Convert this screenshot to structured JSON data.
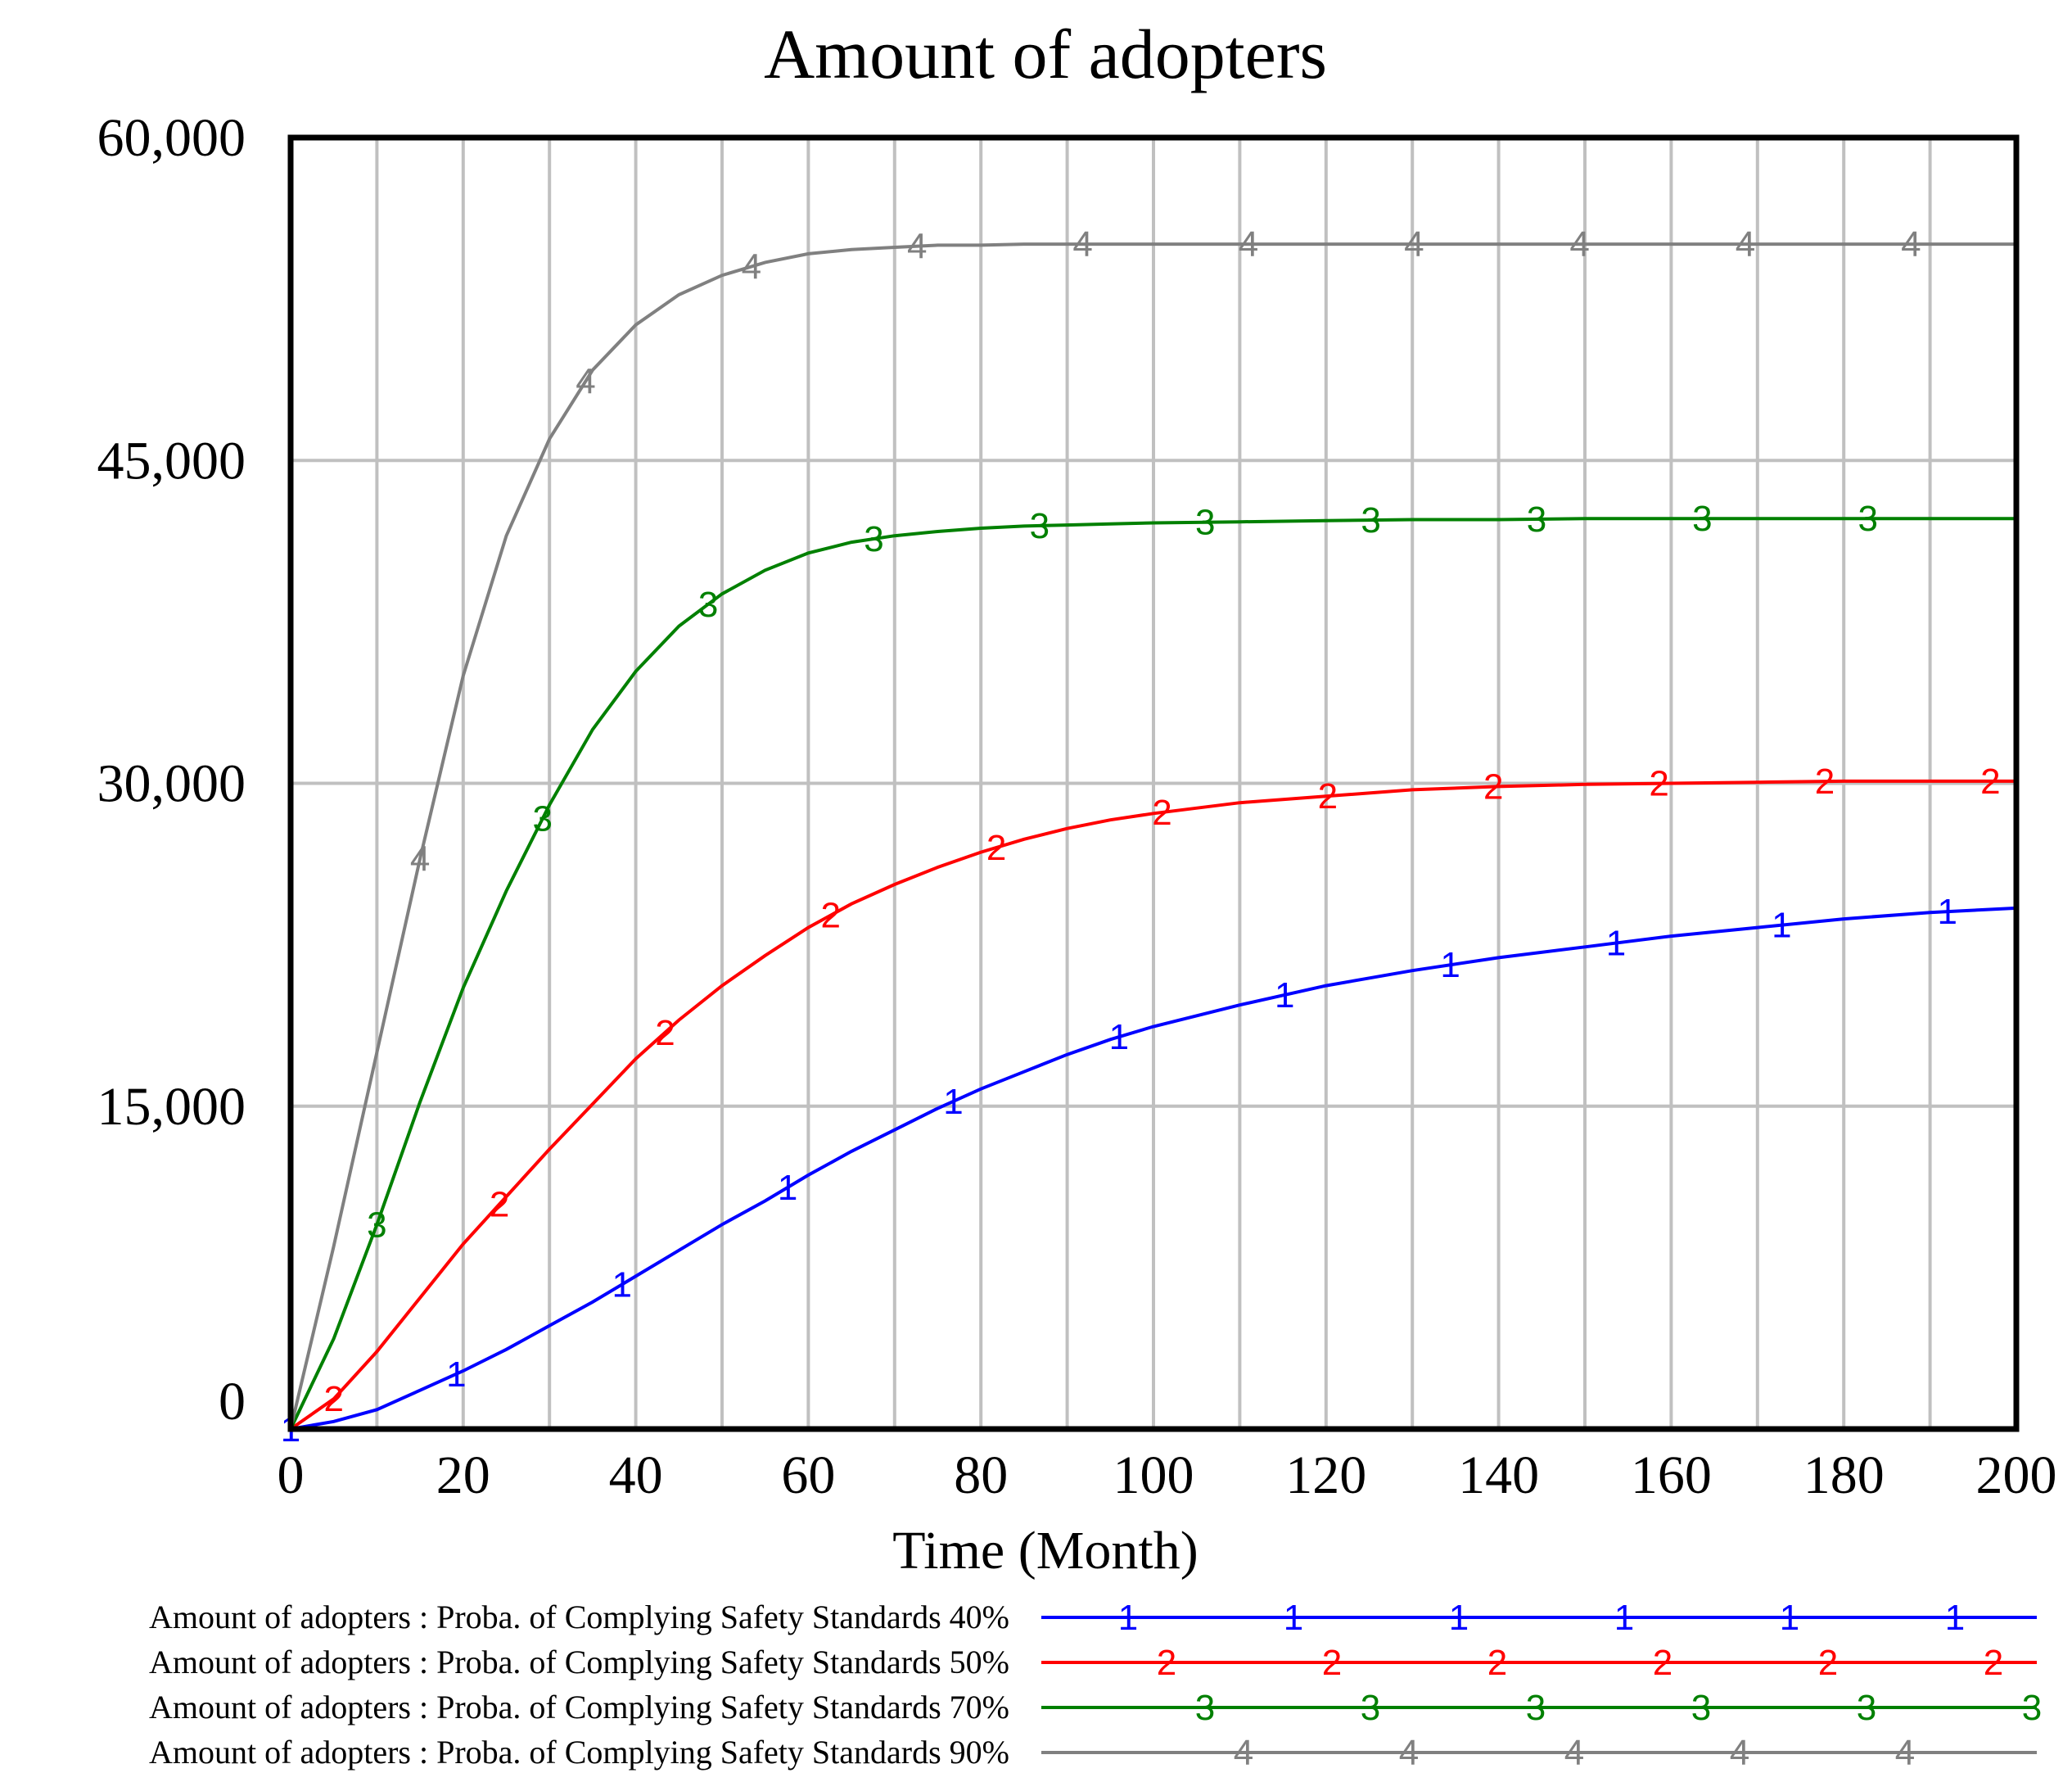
{
  "chart_data": {
    "type": "line",
    "title": "Amount of adopters",
    "xlabel": "Time (Month)",
    "ylabel": "",
    "xlim": [
      0,
      200
    ],
    "ylim": [
      0,
      60000
    ],
    "x_ticks": [
      0,
      20,
      40,
      60,
      80,
      100,
      120,
      140,
      160,
      180,
      200
    ],
    "y_ticks": [
      0,
      15000,
      30000,
      45000,
      60000
    ],
    "x_tick_labels": [
      "0",
      "20",
      "40",
      "60",
      "80",
      "100",
      "120",
      "140",
      "160",
      "180",
      "200"
    ],
    "y_tick_labels": [
      "0",
      "15,000",
      "30,000",
      "45,000",
      "60,000"
    ],
    "grid": true,
    "legend_position": "bottom",
    "x": [
      0,
      5,
      10,
      15,
      20,
      25,
      30,
      35,
      40,
      45,
      50,
      55,
      60,
      65,
      70,
      75,
      80,
      85,
      90,
      95,
      100,
      110,
      120,
      130,
      140,
      150,
      160,
      170,
      180,
      190,
      200
    ],
    "series": [
      {
        "name": "Amount of adopters : Proba. of Complying Safety Standards 40%",
        "marker": "1",
        "color": "#0000ff",
        "values": [
          0,
          350,
          900,
          1800,
          2700,
          3700,
          4800,
          5900,
          7100,
          8300,
          9500,
          10600,
          11800,
          12900,
          13900,
          14900,
          15800,
          16600,
          17400,
          18100,
          18700,
          19700,
          20600,
          21300,
          21900,
          22400,
          22900,
          23300,
          23700,
          24000,
          24200
        ]
      },
      {
        "name": "Amount of adopters : Proba. of Complying Safety Standards 50%",
        "marker": "2",
        "color": "#ff0000",
        "values": [
          0,
          1400,
          3600,
          6100,
          8600,
          10800,
          13000,
          15100,
          17200,
          19000,
          20600,
          22000,
          23300,
          24400,
          25300,
          26100,
          26800,
          27400,
          27900,
          28300,
          28600,
          29100,
          29400,
          29700,
          29850,
          29950,
          30000,
          30050,
          30100,
          30100,
          30100
        ]
      },
      {
        "name": "Amount of adopters : Proba. of Complying Safety Standards 70%",
        "marker": "3",
        "color": "#008000",
        "values": [
          0,
          4200,
          9500,
          15200,
          20500,
          25000,
          29000,
          32500,
          35200,
          37300,
          38800,
          39900,
          40700,
          41200,
          41500,
          41700,
          41850,
          41950,
          42000,
          42050,
          42100,
          42150,
          42200,
          42250,
          42250,
          42300,
          42300,
          42300,
          42300,
          42300,
          42300
        ]
      },
      {
        "name": "Amount of adopters : Proba. of Complying Safety Standards 90%",
        "marker": "4",
        "color": "#808080",
        "values": [
          0,
          8500,
          17500,
          26500,
          35000,
          41500,
          46000,
          49200,
          51300,
          52700,
          53600,
          54200,
          54600,
          54800,
          54900,
          55000,
          55000,
          55050,
          55050,
          55050,
          55050,
          55050,
          55050,
          55050,
          55050,
          55050,
          55050,
          55050,
          55050,
          55050,
          55050
        ]
      }
    ]
  }
}
